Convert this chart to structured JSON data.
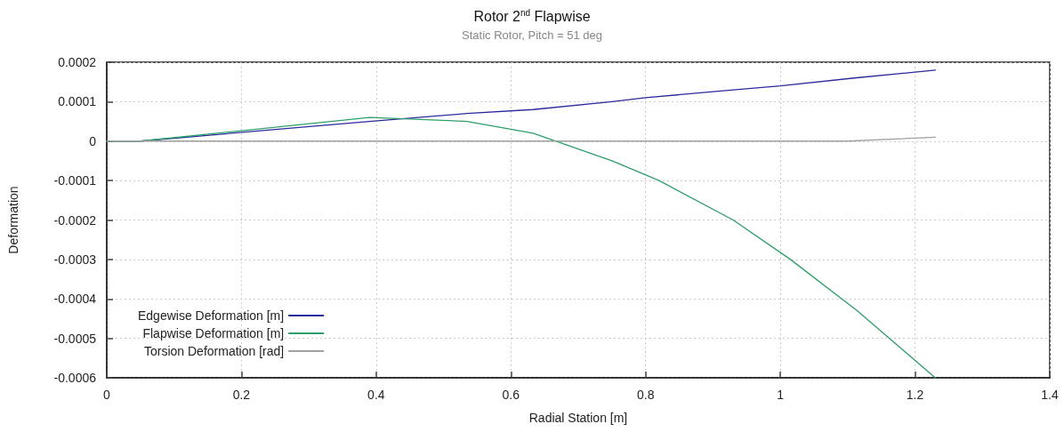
{
  "chart_data": {
    "type": "line",
    "title": "Rotor 2$^{nd}$ Flapwise",
    "subtitle": "Static Rotor, Pitch = 51 deg",
    "xlabel": "Radial Station [m]",
    "ylabel": "Deformation",
    "xlim": [
      0,
      1.4
    ],
    "xticks": [
      0,
      0.2,
      0.4,
      0.6,
      0.8,
      1,
      1.2,
      1.4
    ],
    "ylim": [
      -0.0006,
      0.0002
    ],
    "yticks": [
      -0.0006,
      -0.0005,
      -0.0004,
      -0.0003,
      -0.0002,
      -0.0001,
      0,
      0.0001,
      0.0002
    ],
    "grid": true,
    "legend": "bottom left",
    "marker": "none",
    "line_style": "solid",
    "series": [
      {
        "name": "Edgewise Deformation [m]",
        "color": "#2a2a9c",
        "x": [
          0,
          0.05,
          0.39,
          0.535,
          0.633,
          0.75,
          0.8,
          0.93,
          1,
          1.11,
          1.23
        ],
        "values": [
          0,
          0,
          5e-05,
          7e-05,
          8e-05,
          0.0001,
          0.00011,
          0.00013,
          0.00014,
          0.00016,
          0.00018
        ]
      },
      {
        "name": "Flapwise Deformation [m]",
        "color": "#2e9e6a",
        "x": [
          0,
          0.05,
          0.39,
          0.535,
          0.633,
          0.75,
          0.82,
          0.93,
          1.015,
          1.114,
          1.23
        ],
        "values": [
          0,
          0,
          6e-05,
          5e-05,
          2e-05,
          -5e-05,
          -0.0001,
          -0.0002,
          -0.0003,
          -0.00043,
          -0.0006
        ]
      },
      {
        "name": "Torsion Deformation [rad]",
        "color": "#a0a0a0",
        "x": [
          0,
          0.2,
          0.4,
          0.6,
          0.8,
          1,
          1.1,
          1.23
        ],
        "values": [
          0,
          0,
          0,
          0,
          0,
          0,
          0,
          1e-05
        ]
      }
    ]
  }
}
